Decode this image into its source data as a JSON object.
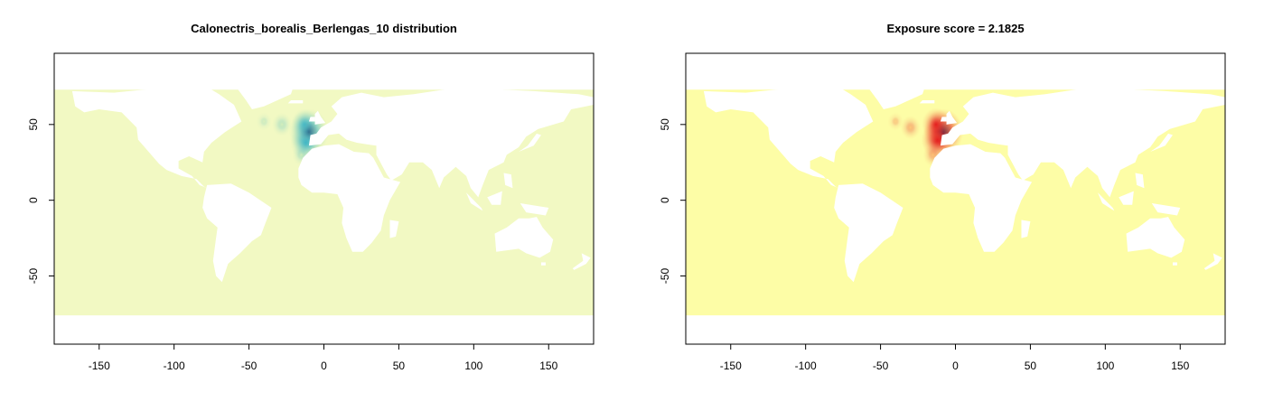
{
  "chart_data": [
    {
      "type": "heatmap",
      "title": "Calonectris_borealis_Berlengas_10 distribution",
      "xlabel": "",
      "ylabel": "",
      "xlim": [
        -180,
        180
      ],
      "ylim": [
        -95,
        97
      ],
      "x_ticks": [
        -150,
        -100,
        -50,
        0,
        50,
        100,
        150
      ],
      "y_ticks": [
        50,
        0,
        -50
      ],
      "ocean_extent": {
        "lat_min": -76,
        "lat_max": 73
      },
      "colors": {
        "background": "#f2f9c3",
        "low": "#c7e9b4",
        "mid": "#41b6c4",
        "high": "#08306b"
      },
      "hotspots": [
        {
          "lon": -10,
          "lat": 45,
          "intensity": 1.0
        },
        {
          "lon": -12,
          "lat": 38,
          "intensity": 0.7
        },
        {
          "lon": -13,
          "lat": 50,
          "intensity": 0.55
        },
        {
          "lon": -28,
          "lat": 50,
          "intensity": 0.3
        },
        {
          "lon": -40,
          "lat": 52,
          "intensity": 0.15
        },
        {
          "lon": -15,
          "lat": 30,
          "intensity": 0.25
        }
      ]
    },
    {
      "type": "heatmap",
      "title": "Exposure score = 2.1825",
      "xlabel": "",
      "ylabel": "",
      "xlim": [
        -180,
        180
      ],
      "ylim": [
        -95,
        97
      ],
      "x_ticks": [
        -150,
        -100,
        -50,
        0,
        50,
        100,
        150
      ],
      "y_ticks": [
        50,
        0,
        -50
      ],
      "ocean_extent": {
        "lat_min": -76,
        "lat_max": 73
      },
      "colors": {
        "background": "#fdfda6",
        "low": "#fdae61",
        "mid": "#e31a1c",
        "high": "#2c1a4a"
      },
      "hotspots": [
        {
          "lon": -8,
          "lat": 45,
          "intensity": 1.0
        },
        {
          "lon": -12,
          "lat": 40,
          "intensity": 0.75
        },
        {
          "lon": -13,
          "lat": 50,
          "intensity": 0.6
        },
        {
          "lon": -30,
          "lat": 48,
          "intensity": 0.3
        },
        {
          "lon": -40,
          "lat": 52,
          "intensity": 0.15
        },
        {
          "lon": -15,
          "lat": 30,
          "intensity": 0.3
        }
      ]
    }
  ]
}
